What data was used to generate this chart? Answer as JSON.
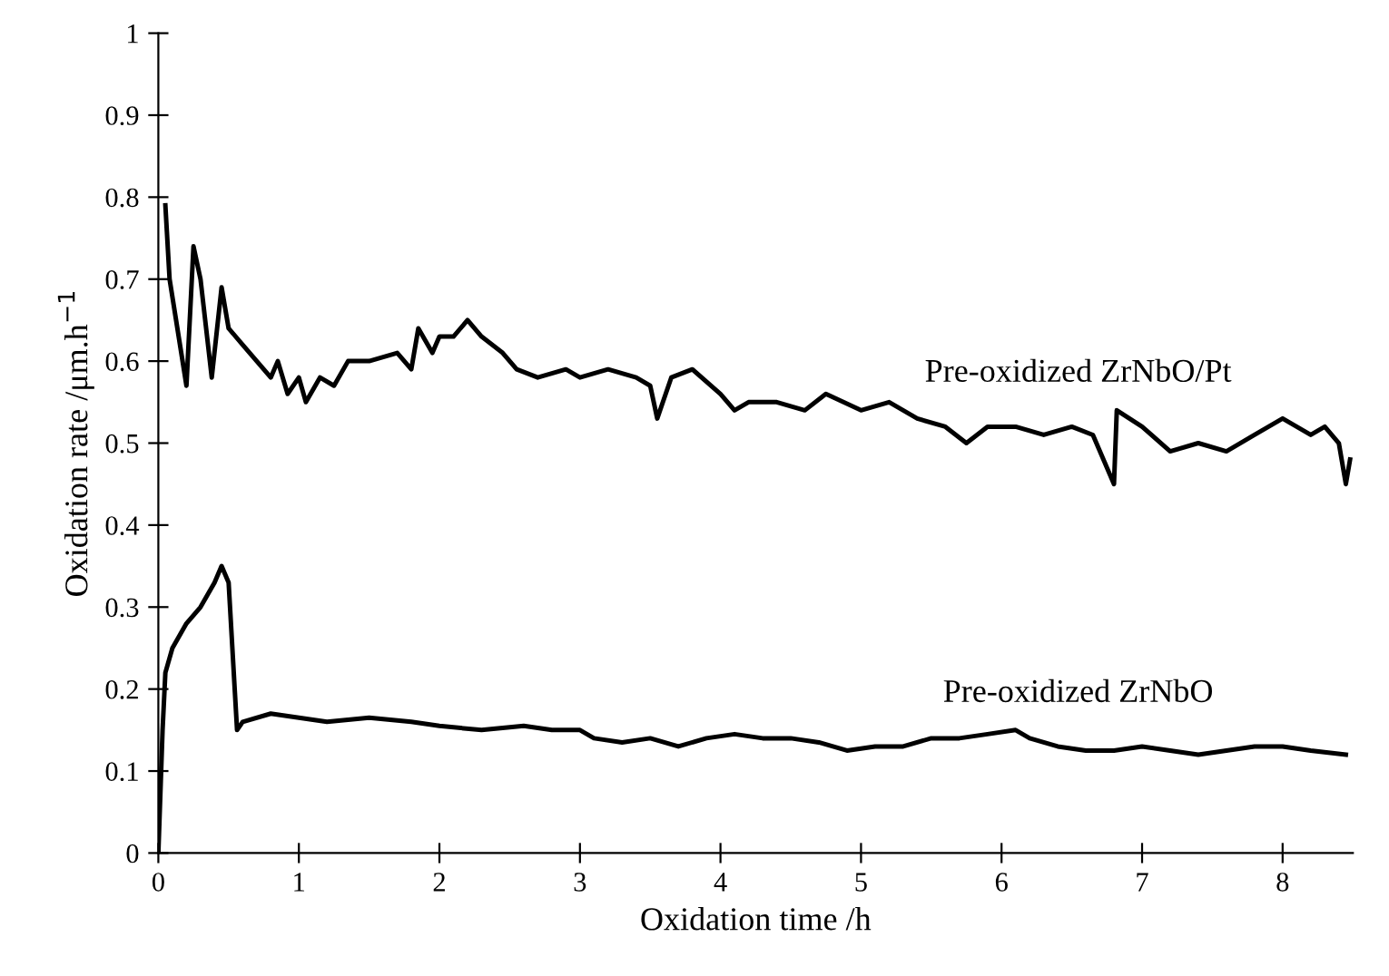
{
  "chart_data": {
    "type": "line",
    "xlabel": "Oxidation time /h",
    "ylabel": "Oxidation rate /μm.h$^{−1}$",
    "xlim": [
      0,
      8.5
    ],
    "xticks": [
      0,
      1,
      2,
      3,
      4,
      5,
      6,
      7,
      8
    ],
    "ylim": [
      0,
      1
    ],
    "yticks": [
      0,
      0.1,
      0.2,
      0.3,
      0.4,
      0.5,
      0.6,
      0.7,
      0.8,
      0.9,
      1
    ],
    "grid": false,
    "legend": false,
    "marker": "none",
    "line_style": "solid",
    "series": [
      {
        "name": "Pre-oxidized ZrNbO/Pt",
        "color": "#000000",
        "x": [
          0.05,
          0.08,
          0.2,
          0.25,
          0.3,
          0.38,
          0.45,
          0.5,
          0.6,
          0.7,
          0.8,
          0.85,
          0.92,
          1.0,
          1.05,
          1.15,
          1.25,
          1.35,
          1.5,
          1.7,
          1.8,
          1.85,
          1.95,
          2.0,
          2.1,
          2.2,
          2.3,
          2.45,
          2.55,
          2.7,
          2.9,
          3.0,
          3.2,
          3.4,
          3.5,
          3.55,
          3.65,
          3.8,
          4.0,
          4.1,
          4.2,
          4.4,
          4.6,
          4.75,
          5.0,
          5.2,
          5.4,
          5.6,
          5.75,
          5.9,
          6.1,
          6.3,
          6.5,
          6.65,
          6.8,
          6.82,
          7.0,
          7.2,
          7.4,
          7.6,
          7.8,
          8.0,
          8.2,
          8.3,
          8.4,
          8.45,
          8.48
        ],
        "values": [
          0.79,
          0.7,
          0.57,
          0.74,
          0.7,
          0.58,
          0.69,
          0.64,
          0.62,
          0.6,
          0.58,
          0.6,
          0.56,
          0.58,
          0.55,
          0.58,
          0.57,
          0.6,
          0.6,
          0.61,
          0.59,
          0.64,
          0.61,
          0.63,
          0.63,
          0.65,
          0.63,
          0.61,
          0.59,
          0.58,
          0.59,
          0.58,
          0.59,
          0.58,
          0.57,
          0.53,
          0.58,
          0.59,
          0.56,
          0.54,
          0.55,
          0.55,
          0.54,
          0.56,
          0.54,
          0.55,
          0.53,
          0.52,
          0.5,
          0.52,
          0.52,
          0.51,
          0.52,
          0.51,
          0.45,
          0.54,
          0.52,
          0.49,
          0.5,
          0.49,
          0.51,
          0.53,
          0.51,
          0.52,
          0.5,
          0.45,
          0.48
        ]
      },
      {
        "name": "Pre-oxidized ZrNbO",
        "color": "#000000",
        "x": [
          0.0,
          0.03,
          0.05,
          0.1,
          0.2,
          0.3,
          0.4,
          0.45,
          0.5,
          0.56,
          0.6,
          0.8,
          1.0,
          1.2,
          1.5,
          1.8,
          2.0,
          2.3,
          2.6,
          2.8,
          3.0,
          3.1,
          3.3,
          3.5,
          3.7,
          3.9,
          4.1,
          4.3,
          4.5,
          4.7,
          4.9,
          5.1,
          5.3,
          5.5,
          5.7,
          5.9,
          6.1,
          6.2,
          6.4,
          6.6,
          6.8,
          7.0,
          7.2,
          7.4,
          7.6,
          7.8,
          8.0,
          8.2,
          8.45
        ],
        "values": [
          0.0,
          0.15,
          0.22,
          0.25,
          0.28,
          0.3,
          0.33,
          0.35,
          0.33,
          0.15,
          0.16,
          0.17,
          0.165,
          0.16,
          0.165,
          0.16,
          0.155,
          0.15,
          0.155,
          0.15,
          0.15,
          0.14,
          0.135,
          0.14,
          0.13,
          0.14,
          0.145,
          0.14,
          0.14,
          0.135,
          0.125,
          0.13,
          0.13,
          0.14,
          0.14,
          0.145,
          0.15,
          0.14,
          0.13,
          0.125,
          0.125,
          0.13,
          0.125,
          0.12,
          0.125,
          0.13,
          0.13,
          0.125,
          0.12
        ]
      }
    ]
  }
}
